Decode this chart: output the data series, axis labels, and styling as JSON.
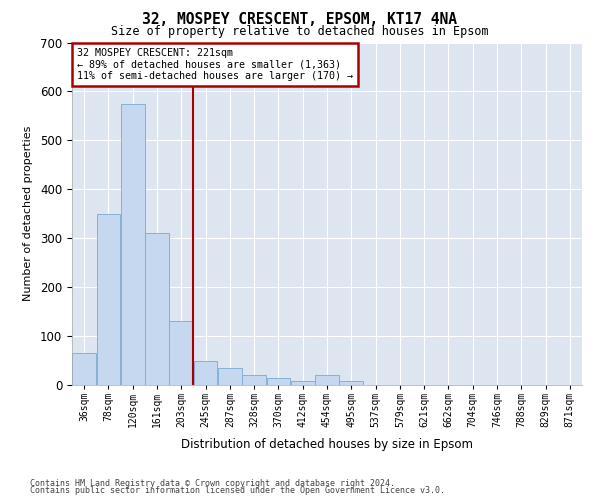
{
  "title": "32, MOSPEY CRESCENT, EPSOM, KT17 4NA",
  "subtitle": "Size of property relative to detached houses in Epsom",
  "xlabel": "Distribution of detached houses by size in Epsom",
  "ylabel": "Number of detached properties",
  "bar_color": "#c5d8f0",
  "bar_edge_color": "#7aaad0",
  "background_color": "#dde6f0",
  "grid_color": "#ffffff",
  "annotation_box_color": "#aa0000",
  "vline_color": "#aa0000",
  "vline_x_bin": 5,
  "annotation_title": "32 MOSPEY CRESCENT: 221sqm",
  "annotation_line1": "← 89% of detached houses are smaller (1,363)",
  "annotation_line2": "11% of semi-detached houses are larger (170) →",
  "footer_line1": "Contains HM Land Registry data © Crown copyright and database right 2024.",
  "footer_line2": "Contains public sector information licensed under the Open Government Licence v3.0.",
  "categories": [
    "36sqm",
    "78sqm",
    "120sqm",
    "161sqm",
    "203sqm",
    "245sqm",
    "287sqm",
    "328sqm",
    "370sqm",
    "412sqm",
    "454sqm",
    "495sqm",
    "537sqm",
    "579sqm",
    "621sqm",
    "662sqm",
    "704sqm",
    "746sqm",
    "788sqm",
    "829sqm",
    "871sqm"
  ],
  "values": [
    65,
    350,
    575,
    310,
    130,
    50,
    35,
    20,
    15,
    8,
    20,
    8,
    0,
    0,
    0,
    0,
    0,
    0,
    0,
    0,
    0
  ],
  "ylim": [
    0,
    700
  ],
  "yticks": [
    0,
    100,
    200,
    300,
    400,
    500,
    600,
    700
  ],
  "fig_bg": "#ffffff"
}
